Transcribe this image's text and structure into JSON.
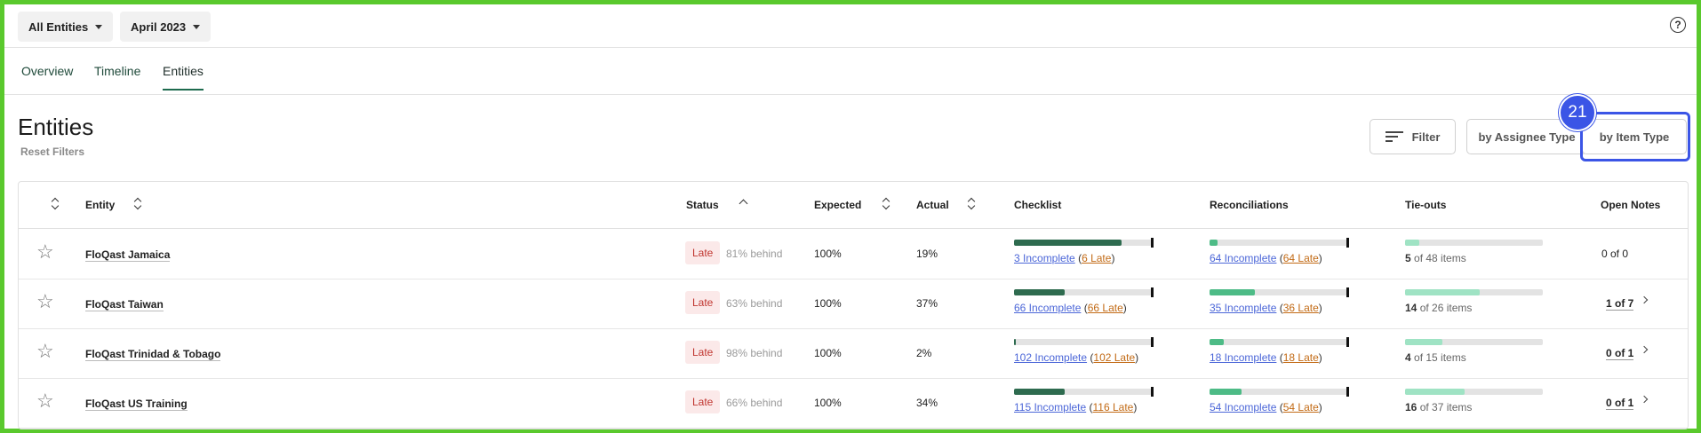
{
  "topbar": {
    "entity_filter": "All Entities",
    "period_filter": "April 2023",
    "help_icon": "help-icon"
  },
  "tabs": [
    {
      "label": "Overview"
    },
    {
      "label": "Timeline"
    },
    {
      "label": "Entities",
      "active": true
    }
  ],
  "header": {
    "title": "Entities",
    "reset_filters": "Reset Filters",
    "filter_label": "Filter",
    "by_assignee_label": "by Assignee Type",
    "by_item_label": "by Item Type",
    "annotation_number": "21"
  },
  "table": {
    "columns": {
      "entity": "Entity",
      "status": "Status",
      "expected": "Expected",
      "actual": "Actual",
      "checklist": "Checklist",
      "reconciliations": "Reconciliations",
      "tieouts": "Tie-outs",
      "open_notes": "Open Notes"
    },
    "rows": [
      {
        "entity": "FloQast Jamaica",
        "status": "Late",
        "behind": "81% behind",
        "expected": "100%",
        "actual": "19%",
        "checklist_incomplete": "3 Incomplete",
        "checklist_late": "6 Late",
        "checklist_progress": 0.78,
        "recon_incomplete": "64 Incomplete",
        "recon_late": "64 Late",
        "recon_progress": 0.06,
        "tie_count": "5",
        "tie_rest": "of 48 items",
        "tie_progress": 0.1,
        "notes": "0 of 0",
        "notes_link": false
      },
      {
        "entity": "FloQast Taiwan",
        "status": "Late",
        "behind": "63% behind",
        "expected": "100%",
        "actual": "37%",
        "checklist_incomplete": "66 Incomplete",
        "checklist_late": "66 Late",
        "checklist_progress": 0.37,
        "recon_incomplete": "35 Incomplete",
        "recon_late": "36 Late",
        "recon_progress": 0.33,
        "tie_count": "14",
        "tie_rest": "of 26 items",
        "tie_progress": 0.54,
        "notes": "1 of 7",
        "notes_link": true
      },
      {
        "entity": "FloQast Trinidad & Tobago",
        "status": "Late",
        "behind": "98% behind",
        "expected": "100%",
        "actual": "2%",
        "checklist_incomplete": "102 Incomplete",
        "checklist_late": "102 Late",
        "checklist_progress": 0.01,
        "recon_incomplete": "18 Incomplete",
        "recon_late": "18 Late",
        "recon_progress": 0.1,
        "tie_count": "4",
        "tie_rest": "of 15 items",
        "tie_progress": 0.27,
        "notes": "0 of 1",
        "notes_link": true
      },
      {
        "entity": "FloQast US Training",
        "status": "Late",
        "behind": "66% behind",
        "expected": "100%",
        "actual": "34%",
        "checklist_incomplete": "115 Incomplete",
        "checklist_late": "116 Late",
        "checklist_progress": 0.37,
        "recon_incomplete": "54 Incomplete",
        "recon_late": "54 Late",
        "recon_progress": 0.23,
        "tie_count": "16",
        "tie_rest": "of 37 items",
        "tie_progress": 0.43,
        "notes": "0 of 1",
        "notes_link": true
      }
    ]
  },
  "colors": {
    "checklist_fill": "#2e6b4f",
    "recon_fill": "#4dbb86",
    "tie_fill": "#9fe3c4",
    "highlight": "#3b55e6",
    "frame": "#5ac92d"
  }
}
